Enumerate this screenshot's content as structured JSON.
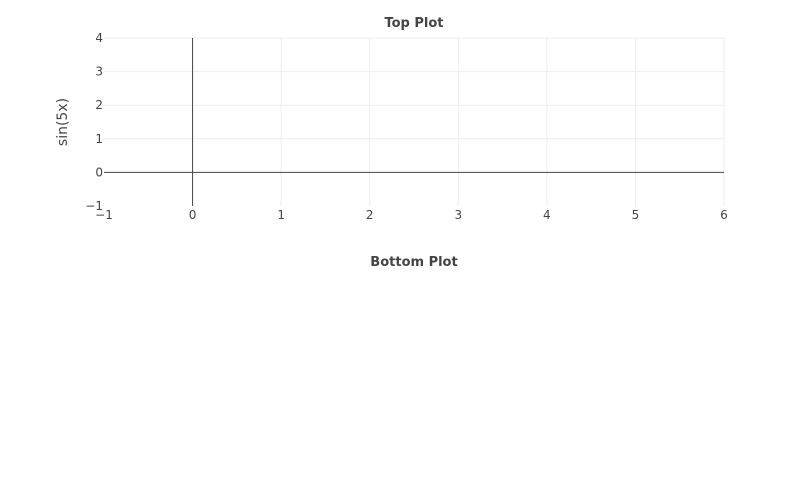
{
  "colors": {
    "background": "#ffffff",
    "grid": "#eeeeee",
    "zero_line": "#444444",
    "text": "#444444"
  },
  "chart_data": [
    {
      "type": "line",
      "title": "Top Plot",
      "xlabel": "",
      "ylabel": "sin(5x)",
      "xlim": [
        -1,
        6
      ],
      "ylim": [
        -1,
        4
      ],
      "x_ticks": [
        -1,
        0,
        1,
        2,
        3,
        4,
        5,
        6
      ],
      "x_tick_labels": [
        "−1",
        "0",
        "1",
        "2",
        "3",
        "4",
        "5",
        "6"
      ],
      "y_ticks": [
        -1,
        0,
        1,
        2,
        3,
        4
      ],
      "y_tick_labels": [
        "−1",
        "0",
        "1",
        "2",
        "3",
        "4"
      ],
      "grid": true,
      "series": []
    },
    {
      "type": "line",
      "title": "Bottom Plot",
      "series": []
    }
  ]
}
